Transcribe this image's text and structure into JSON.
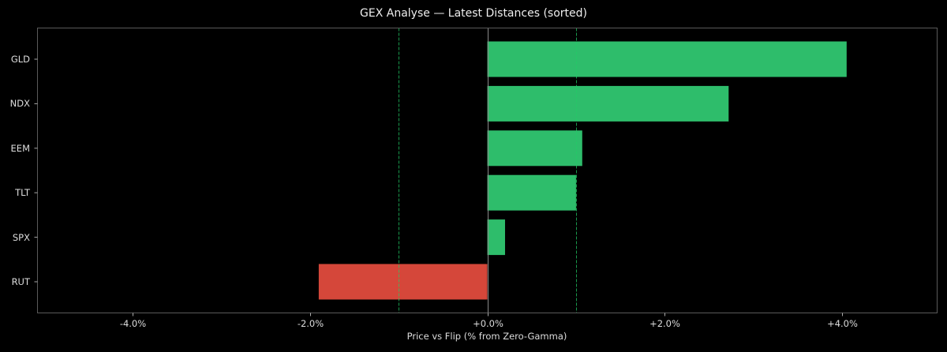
{
  "chart_data": {
    "type": "bar",
    "orientation": "horizontal",
    "title": "GEX Analyse — Latest Distances (sorted)",
    "xlabel": "Price vs Flip (% from Zero-Gamma)",
    "ylabel": "",
    "categories": [
      "GLD",
      "NDX",
      "EEM",
      "TLT",
      "SPX",
      "RUT"
    ],
    "values": [
      4.05,
      2.72,
      1.07,
      1.0,
      0.2,
      -1.9
    ],
    "unit": "%",
    "xlim": [
      -5.07,
      5.07
    ],
    "xticks": [
      -4.0,
      -2.0,
      0.0,
      2.0,
      4.0
    ],
    "xtick_labels": [
      "-4.0%",
      "-2.0%",
      "+0.0%",
      "+2.0%",
      "+4.0%"
    ],
    "reference_lines": [
      {
        "x": 0.0,
        "style": "solid",
        "color": "#8a8a8a"
      },
      {
        "x": -1.0,
        "style": "dashed",
        "color": "#22cc66"
      },
      {
        "x": 1.0,
        "style": "dashed",
        "color": "#22cc66"
      }
    ],
    "grid": false,
    "legend": null,
    "colors": {
      "positive": "#2ebd6b",
      "negative": "#d5473a",
      "background": "#000000",
      "spine": "#5a5a5a",
      "text": "#dddddd"
    }
  }
}
